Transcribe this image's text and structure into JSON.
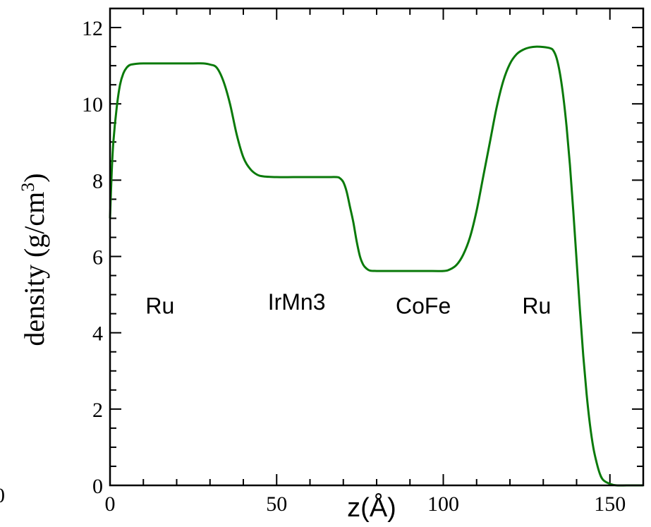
{
  "chart_data": {
    "type": "line",
    "xlabel": "z(Å)",
    "ylabel": "density (g/cm",
    "ylabel_superscript": "3",
    "ylabel_close": ")",
    "xlim": [
      0,
      160
    ],
    "ylim": [
      0,
      12.5
    ],
    "x_ticks": [
      0,
      50,
      100,
      150
    ],
    "y_ticks": [
      0,
      2,
      4,
      6,
      8,
      10,
      12
    ],
    "x_tick_labels": [
      "0",
      "50",
      "100",
      "150"
    ],
    "y_tick_labels": [
      "0",
      "2",
      "4",
      "6",
      "8",
      "10",
      "12"
    ],
    "stray_label": "0",
    "grid": false,
    "line_color": "#0a7a0a",
    "series": [
      {
        "x": [
          0,
          0.5,
          1,
          2,
          3,
          4,
          5,
          6,
          8,
          10,
          15,
          20,
          25,
          28,
          30,
          32,
          34,
          36,
          38,
          40,
          42,
          44,
          46,
          50,
          55,
          60,
          65,
          68,
          69,
          70,
          71,
          72,
          73,
          74,
          75,
          76,
          77,
          78,
          80,
          85,
          90,
          95,
          100,
          102,
          104,
          106,
          108,
          110,
          112,
          114,
          116,
          118,
          120,
          122,
          124,
          126,
          128,
          130,
          132,
          133,
          134,
          135,
          136,
          137,
          138,
          139,
          140,
          141,
          142,
          143,
          144,
          145,
          146,
          147,
          148,
          150,
          152,
          155,
          158,
          160
        ],
        "y": [
          7.0,
          8.2,
          9.0,
          9.9,
          10.5,
          10.8,
          10.95,
          11.02,
          11.05,
          11.06,
          11.06,
          11.06,
          11.06,
          11.06,
          11.03,
          10.95,
          10.6,
          10.0,
          9.2,
          8.6,
          8.3,
          8.15,
          8.1,
          8.08,
          8.08,
          8.08,
          8.08,
          8.08,
          8.05,
          7.95,
          7.7,
          7.3,
          6.9,
          6.4,
          6.0,
          5.78,
          5.68,
          5.63,
          5.62,
          5.62,
          5.62,
          5.62,
          5.62,
          5.66,
          5.78,
          6.05,
          6.5,
          7.2,
          8.1,
          9.0,
          9.9,
          10.6,
          11.05,
          11.3,
          11.42,
          11.48,
          11.5,
          11.49,
          11.46,
          11.4,
          11.2,
          10.8,
          10.2,
          9.4,
          8.4,
          7.2,
          5.9,
          4.6,
          3.4,
          2.4,
          1.6,
          1.0,
          0.6,
          0.3,
          0.14,
          0.04,
          0.0,
          0.0,
          0.0,
          0.0
        ]
      }
    ],
    "annotations": [
      {
        "text": "Ru",
        "x": 15,
        "y": 4.5
      },
      {
        "text": "IrMn3",
        "x": 56,
        "y": 4.6
      },
      {
        "text": "CoFe",
        "x": 94,
        "y": 4.5
      },
      {
        "text": "Ru",
        "x": 128,
        "y": 4.5
      }
    ]
  }
}
